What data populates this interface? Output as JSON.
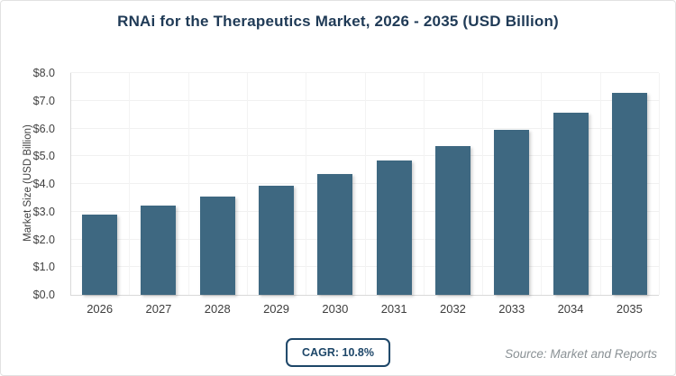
{
  "header": {
    "title": "RNAi for the Therapeutics Market, 2026 - 2035 (USD Billion)"
  },
  "chart_data": {
    "type": "bar",
    "title": "RNAi for the Therapeutics Market, 2026 - 2035 (USD Billion)",
    "categories": [
      "2026",
      "2027",
      "2028",
      "2029",
      "2030",
      "2031",
      "2032",
      "2033",
      "2034",
      "2035"
    ],
    "values": [
      2.9,
      3.21,
      3.56,
      3.94,
      4.37,
      4.84,
      5.36,
      5.94,
      6.58,
      7.29
    ],
    "xlabel": "",
    "ylabel": "Market Size (USD Billion)",
    "ylim": [
      0,
      8
    ],
    "ytick_step": 1,
    "ytick_prefix": "$",
    "ytick_decimals": 1,
    "grid": true,
    "legend": "none",
    "bar_color": "#3e6881"
  },
  "footer": {
    "cagr_label": "CAGR: 10.8%",
    "source": "Source: Market and Reports"
  },
  "colors": {
    "title": "#1f3a56",
    "bar": "#3e6881",
    "badge_border": "#1d4668",
    "axis_text": "#404040",
    "gridline": "#f1f1f1",
    "axis_line": "#d9d9d9",
    "source_text": "#8a9195"
  }
}
